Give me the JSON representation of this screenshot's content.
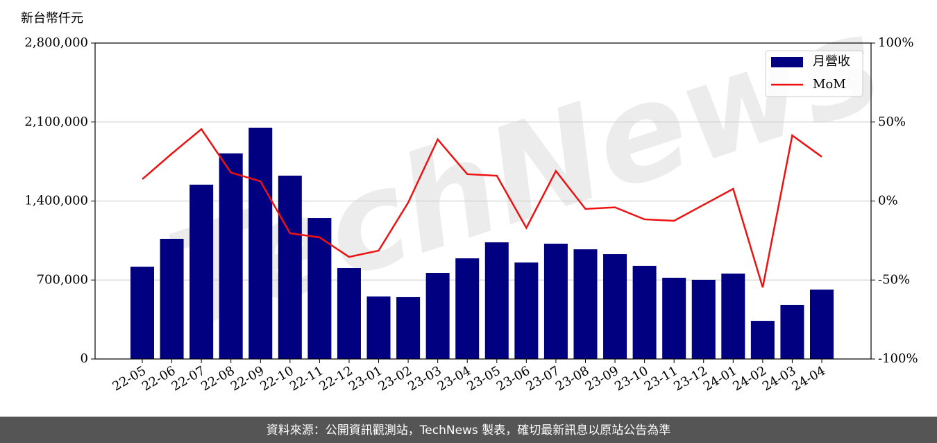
{
  "chart_data": {
    "type": "bar_line",
    "y_axis_label": "新台幣仟元",
    "watermark": "TechNews",
    "footer": "資料來源：公開資訊觀測站，TechNews 製表，確切最新訊息以原站公告為準",
    "categories": [
      "22-05",
      "22-06",
      "22-07",
      "22-08",
      "22-09",
      "22-10",
      "22-11",
      "22-12",
      "23-01",
      "23-02",
      "23-03",
      "23-04",
      "23-05",
      "23-06",
      "23-07",
      "23-08",
      "23-09",
      "23-10",
      "23-11",
      "23-12",
      "24-01",
      "24-02",
      "24-03",
      "24-04"
    ],
    "series": [
      {
        "name": "月營收",
        "type": "bar",
        "color": "#000080",
        "values": [
          818000,
          1065000,
          1545000,
          1822000,
          2050000,
          1625000,
          1249000,
          806000,
          554000,
          548000,
          763000,
          892000,
          1034000,
          855000,
          1022000,
          972000,
          929000,
          825000,
          720000,
          702000,
          757000,
          338000,
          480000,
          615000
        ]
      },
      {
        "name": "MoM",
        "type": "line",
        "color": "#ee1111",
        "axis": "y2",
        "values": [
          13.8,
          30,
          45.5,
          18,
          12.5,
          -20.4,
          -23,
          -35.4,
          -31.4,
          -1,
          39,
          17,
          16,
          -17,
          19,
          -5,
          -4,
          -11.6,
          -12.5,
          -2.4,
          7.7,
          -54.7,
          41.5,
          28
        ]
      }
    ],
    "ylim": [
      0,
      2800000
    ],
    "yticks": [
      {
        "value": 0,
        "label": "0"
      },
      {
        "value": 700000,
        "label": "700,000"
      },
      {
        "value": 1400000,
        "label": "1,400,000"
      },
      {
        "value": 2100000,
        "label": "2,100,000"
      },
      {
        "value": 2800000,
        "label": "2,800,000"
      }
    ],
    "y2lim": [
      -100,
      100
    ],
    "y2ticks": [
      {
        "value": -100,
        "label": "-100%"
      },
      {
        "value": -50,
        "label": "-50%"
      },
      {
        "value": 0,
        "label": "0%"
      },
      {
        "value": 50,
        "label": "50%"
      },
      {
        "value": 100,
        "label": "100%"
      }
    ],
    "grid": true,
    "legend": "upper right"
  }
}
